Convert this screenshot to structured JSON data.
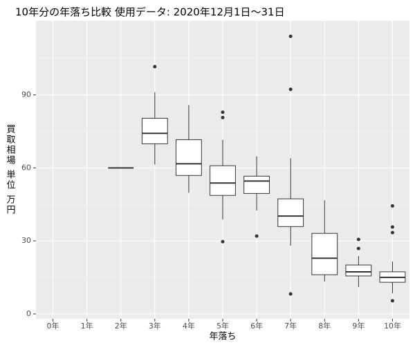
{
  "chart_data": {
    "type": "box",
    "title": "10年分の年落ち比較 使用データ: 2020年12月1日～31日",
    "x_label": "年落ち",
    "y_label": "買取相場 単位 万円",
    "categories": [
      "0年",
      "1年",
      "2年",
      "3年",
      "4年",
      "5年",
      "6年",
      "7年",
      "8年",
      "9年",
      "10年"
    ],
    "boxes": [
      null,
      null,
      {
        "min": 60,
        "q1": 60,
        "median": 60,
        "q3": 60,
        "max": 60,
        "outliers": []
      },
      {
        "min": 61.4,
        "q1": 69.9,
        "median": 74.2,
        "q3": 80.4,
        "max": 91.1,
        "outliers": [
          101.6
        ]
      },
      {
        "min": 49.8,
        "q1": 56.9,
        "median": 61.7,
        "q3": 71.6,
        "max": 85.8,
        "outliers": []
      },
      {
        "min": 38.8,
        "q1": 48.7,
        "median": 53.8,
        "q3": 60.9,
        "max": 71.6,
        "outliers": [
          82.9,
          80.7,
          29.7
        ]
      },
      {
        "min": 42.5,
        "q1": 49.5,
        "median": 54.6,
        "q3": 56.6,
        "max": 64.8,
        "outliers": [
          32.0
        ]
      },
      {
        "min": 28.0,
        "q1": 35.9,
        "median": 40.2,
        "q3": 47.3,
        "max": 64.0,
        "outliers": [
          114.1,
          92.3,
          8.2
        ]
      },
      {
        "min": 13.3,
        "q1": 16.1,
        "median": 22.9,
        "q3": 33.1,
        "max": 46.7,
        "outliers": []
      },
      {
        "min": 11.0,
        "q1": 15.6,
        "median": 17.3,
        "q3": 20.1,
        "max": 23.8,
        "outliers": [
          30.6,
          26.9
        ]
      },
      {
        "min": 8.5,
        "q1": 13.0,
        "median": 15.0,
        "q3": 17.3,
        "max": 21.5,
        "outliers": [
          44.4,
          35.7,
          33.4,
          5.4
        ]
      }
    ],
    "ylim": [
      -2,
      120.5
    ],
    "yticks": [
      0,
      30,
      60,
      90
    ],
    "yminorticks": [
      15,
      45,
      75,
      105
    ],
    "grid": true,
    "color": "#333333",
    "box_fill": "#ffffff",
    "panel_color": "#ebebeb"
  }
}
